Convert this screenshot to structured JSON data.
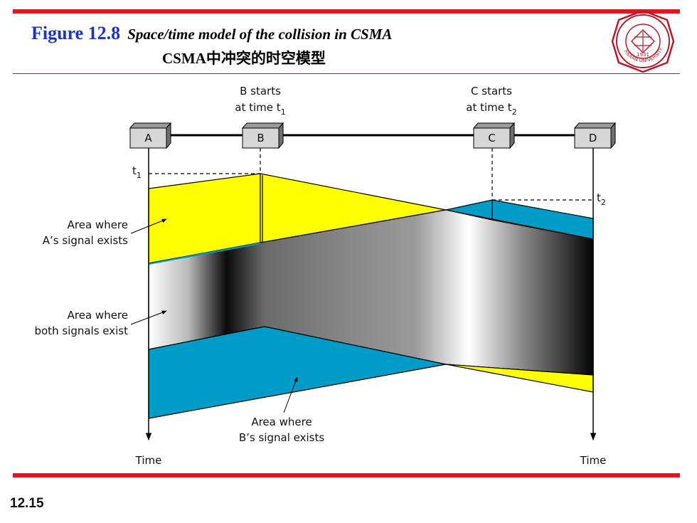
{
  "slide": {
    "figure_number": "Figure 12.8",
    "title_en": "Space/time model of the collision in CSMA",
    "title_zh": "CSMA中冲突的时空模型",
    "page_number": "12.15"
  },
  "logo": {
    "year": "1931",
    "text": "XIDIAN UNIVERSITY",
    "color": "#b01e2c"
  },
  "diagram": {
    "stations": [
      "A",
      "B",
      "C",
      "D"
    ],
    "b_starts": {
      "line1": "B starts",
      "line2": "at time t",
      "sub": "1"
    },
    "c_starts": {
      "line1": "C starts",
      "line2": "at time t",
      "sub": "2"
    },
    "t1": {
      "t": "t",
      "sub": "1"
    },
    "t2": {
      "t": "t",
      "sub": "2"
    },
    "area_a": {
      "line1": "Area where",
      "line2": "A’s signal exists"
    },
    "area_both": {
      "line1": "Area where",
      "line2": "both signals exist"
    },
    "area_b": {
      "line1": "Area where",
      "line2": "B’s signal exists"
    },
    "time_left": "Time",
    "time_right": "Time",
    "colors": {
      "a_signal": "#ffff00",
      "b_signal": "#009cc8",
      "accent_red": "#e8141c",
      "title_blue": "#1a34c8"
    }
  }
}
